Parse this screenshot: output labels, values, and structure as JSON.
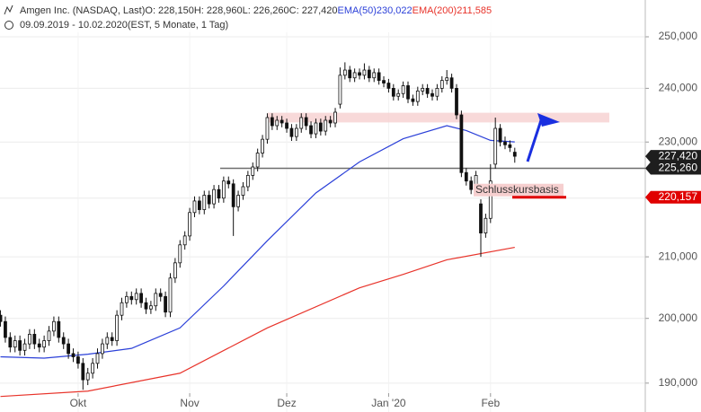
{
  "chart_data": {
    "type": "candlestick",
    "title": "Amgen Inc. (NASDAQ, Last)",
    "subtitle": "09.09.2019 - 10.02.2020",
    "note": "(EST, 5 Monate, 1 Tag)",
    "header_values": [
      "O: 228,150",
      "H: 228,960",
      "L: 226,260",
      "C: 227,420"
    ],
    "log": true,
    "grid": true,
    "xlim": [
      -0.1,
      132.9
    ],
    "xticks": [
      {
        "value": 16,
        "label": "Okt"
      },
      {
        "value": 39,
        "label": "Nov"
      },
      {
        "value": 59,
        "label": "Dez"
      },
      {
        "value": 80,
        "label": "Jan '20"
      },
      {
        "value": 101,
        "label": "Feb"
      }
    ],
    "ylim": [
      185.7,
      257.4
    ],
    "yticks": [
      {
        "value": 190,
        "label": "190,000"
      },
      {
        "value": 200,
        "label": "200,000"
      },
      {
        "value": 210,
        "label": "210,000"
      },
      {
        "value": 220,
        "label": "220,000"
      },
      {
        "value": 230,
        "label": "230,000"
      },
      {
        "value": 240,
        "label": "240,000"
      },
      {
        "value": 250,
        "label": "250,000"
      }
    ],
    "open": [
      200.5,
      199.5,
      197.0,
      195.5,
      196.5,
      195.0,
      196.0,
      197.5,
      196.0,
      195.5,
      196.5,
      198.0,
      199.5,
      197.0,
      196.0,
      194.5,
      194.0,
      193.0,
      190.5,
      191.5,
      193.0,
      194.5,
      196.0,
      197.0,
      196.5,
      200.5,
      202.5,
      203.5,
      203.0,
      204.0,
      202.5,
      201.5,
      202.0,
      204.0,
      203.5,
      201.0,
      206.5,
      209.0,
      212.0,
      213.5,
      217.5,
      219.5,
      218.0,
      220.5,
      219.0,
      221.5,
      220.0,
      223.0,
      222.5,
      218.5,
      220.5,
      222.0,
      224.0,
      225.5,
      228.0,
      230.5,
      234.5,
      233.0,
      234.0,
      233.5,
      232.5,
      231.0,
      232.5,
      234.5,
      233.0,
      231.5,
      233.5,
      232.0,
      234.0,
      233.5,
      237.0,
      242.5,
      243.5,
      242.0,
      243.0,
      242.5,
      243.5,
      242.0,
      243.0,
      241.5,
      241.0,
      240.0,
      238.5,
      239.0,
      240.5,
      238.0,
      237.5,
      239.5,
      240.0,
      239.0,
      238.5,
      240.0,
      241.5,
      242.0,
      240.0,
      235.0,
      224.5,
      223.0,
      221.5,
      219.0,
      214.0,
      216.5,
      226.0,
      232.5,
      230.0,
      229.5,
      228.15
    ],
    "high": [
      201.3,
      200.3,
      197.8,
      197.3,
      197.3,
      196.8,
      198.3,
      198.3,
      196.8,
      197.3,
      198.8,
      200.3,
      200.3,
      197.8,
      196.8,
      195.3,
      194.8,
      193.8,
      192.3,
      193.8,
      195.3,
      196.8,
      197.8,
      197.8,
      201.3,
      203.3,
      204.3,
      204.3,
      204.8,
      204.8,
      203.3,
      202.8,
      204.8,
      204.8,
      204.3,
      207.3,
      209.8,
      212.8,
      214.3,
      218.3,
      220.3,
      220.3,
      221.3,
      221.3,
      222.3,
      222.3,
      223.8,
      223.8,
      223.3,
      221.3,
      222.8,
      224.8,
      226.3,
      228.8,
      231.3,
      235.3,
      235.3,
      234.8,
      234.8,
      234.3,
      233.3,
      233.3,
      235.3,
      235.3,
      233.8,
      234.3,
      234.3,
      234.8,
      234.8,
      236.3,
      244.0,
      245.0,
      244.3,
      243.8,
      243.8,
      244.8,
      244.3,
      243.8,
      243.8,
      242.3,
      241.8,
      240.8,
      239.8,
      241.3,
      241.3,
      238.8,
      240.3,
      240.8,
      240.8,
      239.8,
      240.8,
      242.3,
      243.5,
      242.8,
      240.8,
      235.8,
      225.3,
      223.8,
      224.8,
      219.8,
      217.3,
      226.0,
      234.5,
      233.3,
      231.0,
      230.3,
      228.96
    ],
    "low": [
      198.7,
      196.2,
      194.7,
      194.7,
      194.2,
      194.2,
      195.2,
      195.2,
      194.7,
      194.7,
      195.7,
      197.2,
      196.2,
      195.2,
      193.7,
      193.2,
      192.2,
      189.0,
      189.7,
      190.7,
      192.2,
      193.7,
      195.2,
      195.7,
      195.7,
      199.7,
      201.7,
      202.2,
      202.2,
      201.7,
      200.7,
      200.7,
      201.2,
      202.7,
      200.2,
      200.2,
      205.7,
      208.2,
      211.2,
      212.7,
      216.7,
      217.2,
      217.2,
      218.2,
      218.2,
      219.2,
      219.2,
      221.7,
      213.5,
      217.7,
      219.7,
      221.2,
      223.2,
      224.7,
      227.2,
      229.7,
      232.2,
      232.2,
      232.7,
      231.7,
      230.2,
      230.2,
      231.7,
      232.2,
      230.7,
      230.7,
      231.2,
      231.2,
      232.7,
      232.7,
      236.2,
      241.7,
      241.2,
      241.2,
      241.7,
      241.7,
      241.2,
      241.2,
      240.7,
      240.2,
      239.2,
      237.7,
      237.7,
      238.2,
      237.2,
      236.7,
      236.7,
      238.7,
      238.2,
      237.7,
      237.7,
      239.2,
      240.7,
      239.2,
      234.2,
      223.7,
      222.2,
      220.7,
      220.7,
      210.0,
      213.2,
      215.7,
      225.2,
      229.2,
      228.7,
      228.2,
      226.26
    ],
    "close": [
      199.5,
      197.0,
      195.5,
      196.5,
      195.0,
      196.0,
      197.5,
      196.0,
      195.5,
      196.5,
      198.0,
      199.5,
      197.0,
      196.0,
      194.5,
      194.0,
      193.0,
      190.5,
      191.5,
      193.0,
      194.5,
      196.0,
      197.0,
      196.5,
      200.5,
      202.5,
      203.5,
      203.0,
      204.0,
      202.5,
      201.5,
      202.0,
      204.0,
      203.5,
      201.0,
      206.5,
      209.0,
      212.0,
      213.5,
      217.5,
      219.5,
      218.0,
      220.5,
      219.0,
      221.5,
      220.0,
      223.0,
      222.5,
      218.5,
      220.5,
      222.0,
      224.0,
      225.5,
      228.0,
      230.5,
      234.5,
      233.0,
      234.0,
      233.5,
      232.5,
      231.0,
      232.5,
      234.5,
      233.0,
      231.5,
      233.5,
      232.0,
      234.0,
      233.5,
      235.5,
      242.5,
      243.5,
      242.0,
      243.0,
      242.5,
      243.5,
      242.0,
      243.0,
      241.5,
      241.0,
      240.0,
      238.5,
      239.0,
      240.5,
      238.0,
      237.5,
      239.5,
      240.0,
      239.0,
      238.5,
      240.0,
      241.5,
      242.0,
      240.0,
      235.0,
      224.5,
      223.0,
      221.5,
      224.0,
      214.0,
      216.5,
      223.0,
      232.5,
      230.0,
      229.5,
      229.0,
      227.42
    ],
    "close_label": "227,420",
    "series": [
      {
        "name": "EMA(50)",
        "color": "#2a3fd8",
        "last_label": "230,022",
        "x": [
          0,
          9,
          18,
          27,
          37,
          46,
          55,
          65,
          74,
          83,
          92,
          96,
          101,
          106
        ],
        "values": [
          194.0,
          193.8,
          194.4,
          195.3,
          198.5,
          205.2,
          212.7,
          220.9,
          226.4,
          230.6,
          233.0,
          232.1,
          230.3,
          230.022
        ]
      },
      {
        "name": "EMA(200)",
        "color": "#e8332a",
        "last_label": "211,585",
        "x": [
          0,
          18,
          37,
          55,
          74,
          83,
          92,
          106
        ],
        "values": [
          188.0,
          188.8,
          191.5,
          198.5,
          204.9,
          207.1,
          209.5,
          211.585
        ]
      }
    ],
    "zone": [
      233.6,
      235.4
    ],
    "levels": [
      {
        "value": 225.26,
        "label": "225,260",
        "color": "#6e6e6e"
      },
      {
        "value": 220.157,
        "label": "220,157",
        "color": "#e00000",
        "text": "Schlusskursbasis"
      }
    ]
  }
}
